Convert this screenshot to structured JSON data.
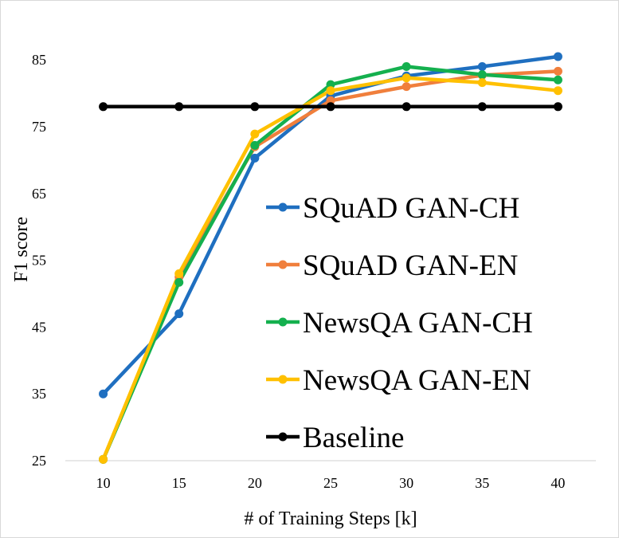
{
  "chart_data": {
    "type": "line",
    "xlabel": "# of  Training Steps [k]",
    "ylabel": "F1 score",
    "x": [
      10,
      15,
      20,
      25,
      30,
      35,
      40
    ],
    "x_ticks": [
      "10",
      "15",
      "20",
      "25",
      "30",
      "35",
      "40"
    ],
    "y_ticks": [
      "25",
      "35",
      "45",
      "55",
      "65",
      "75",
      "85"
    ],
    "ylim": [
      25,
      88
    ],
    "grid": false,
    "legend": "right",
    "series": [
      {
        "name": "SQuAD GAN-CH",
        "color": "#1f6fc0",
        "values": [
          35.0,
          47.0,
          70.3,
          79.6,
          82.6,
          84.0,
          85.5
        ]
      },
      {
        "name": "SQuAD GAN-EN",
        "color": "#f07f3c",
        "values": [
          25.2,
          52.5,
          72.0,
          78.9,
          81.0,
          82.7,
          83.3
        ]
      },
      {
        "name": "NewsQA GAN-CH",
        "color": "#14b04e",
        "values": [
          25.2,
          51.7,
          72.2,
          81.3,
          84.0,
          82.8,
          82.0
        ]
      },
      {
        "name": "NewsQA GAN-EN",
        "color": "#ffc000",
        "values": [
          25.2,
          53.0,
          73.9,
          80.4,
          82.3,
          81.6,
          80.4
        ]
      },
      {
        "name": "Baseline",
        "color": "#000000",
        "values": [
          78.0,
          78.0,
          78.0,
          78.0,
          78.0,
          78.0,
          78.0
        ]
      }
    ]
  }
}
